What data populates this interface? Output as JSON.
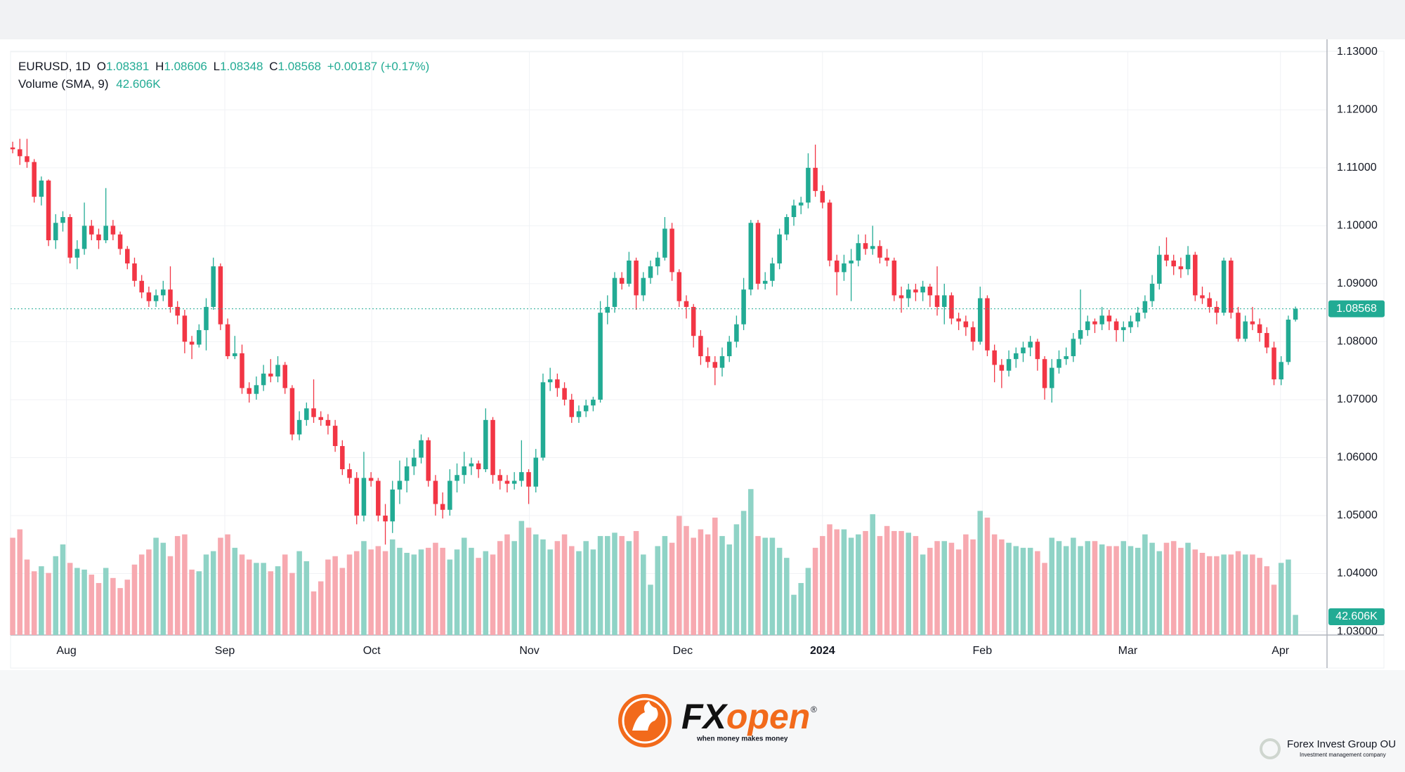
{
  "chart_data": {
    "type": "candlestick",
    "header": {
      "symbol": "EURUSD, 1D",
      "ohlc_letters": [
        "O",
        "H",
        "L",
        "C"
      ],
      "change": "+0.00187 (+0.17%)",
      "indicator": "Volume (SMA, 9)",
      "volume_sma": "42.606K"
    },
    "up_color": "#22ab94",
    "down_color": "#f23645",
    "up_volume_color": "#8fd3c6",
    "down_volume_color": "#f7a9b0",
    "ylim": [
      1.0294,
      1.1301
    ],
    "yticks": [
      {
        "value": 1.03,
        "label": "1.03000"
      },
      {
        "value": 1.04,
        "label": "1.04000"
      },
      {
        "value": 1.05,
        "label": "1.05000"
      },
      {
        "value": 1.06,
        "label": "1.06000"
      },
      {
        "value": 1.07,
        "label": "1.07000"
      },
      {
        "value": 1.08,
        "label": "1.08000"
      },
      {
        "value": 1.09,
        "label": "1.09000"
      },
      {
        "value": 1.1,
        "label": "1.10000"
      },
      {
        "value": 1.11,
        "label": "1.11000"
      },
      {
        "value": 1.12,
        "label": "1.12000"
      },
      {
        "value": 1.13,
        "label": "1.13000"
      }
    ],
    "xlim": [
      -0.3,
      183.4
    ],
    "xticks": [
      {
        "value": 7.5,
        "label": "Aug"
      },
      {
        "value": 29.6,
        "label": "Sep"
      },
      {
        "value": 50.1,
        "label": "Oct"
      },
      {
        "value": 72.1,
        "label": "Nov"
      },
      {
        "value": 93.5,
        "label": "Dec"
      },
      {
        "value": 113,
        "label": "2024"
      },
      {
        "value": 135.3,
        "label": "Feb"
      },
      {
        "value": 155.6,
        "label": "Mar"
      },
      {
        "value": 176.9,
        "label": "Apr"
      }
    ],
    "grid": true,
    "ohlc": [
      [
        1.1135,
        1.1145,
        1.1125,
        1.1132
      ],
      [
        1.1132,
        1.115,
        1.1105,
        1.112
      ],
      [
        1.112,
        1.115,
        1.11,
        1.111
      ],
      [
        1.111,
        1.1115,
        1.104,
        1.105
      ],
      [
        1.105,
        1.1085,
        1.1035,
        1.1078
      ],
      [
        1.1078,
        1.108,
        1.0965,
        1.0975
      ],
      [
        1.0975,
        1.102,
        1.096,
        1.1005
      ],
      [
        1.1005,
        1.1025,
        1.099,
        1.1015
      ],
      [
        1.1015,
        1.102,
        1.0935,
        1.0945
      ],
      [
        1.0945,
        1.0975,
        1.0925,
        1.096
      ],
      [
        1.096,
        1.104,
        1.095,
        1.1
      ],
      [
        1.1,
        1.101,
        1.0975,
        1.0985
      ],
      [
        1.0985,
        1.0995,
        1.096,
        1.0975
      ],
      [
        1.0975,
        1.1065,
        1.097,
        1.1
      ],
      [
        1.1,
        1.101,
        1.0975,
        1.0985
      ],
      [
        1.0985,
        1.099,
        1.095,
        1.096
      ],
      [
        1.096,
        1.0965,
        1.0925,
        1.0935
      ],
      [
        1.0935,
        1.0945,
        1.0895,
        1.0905
      ],
      [
        1.0905,
        1.0915,
        1.0875,
        1.0885
      ],
      [
        1.0885,
        1.0895,
        1.086,
        1.087
      ],
      [
        1.087,
        1.089,
        1.086,
        1.088
      ],
      [
        1.088,
        1.0905,
        1.087,
        1.089
      ],
      [
        1.089,
        1.093,
        1.085,
        1.086
      ],
      [
        1.086,
        1.087,
        1.083,
        1.0845
      ],
      [
        1.0845,
        1.0855,
        1.078,
        1.08
      ],
      [
        1.08,
        1.081,
        1.077,
        1.0795
      ],
      [
        1.0795,
        1.083,
        1.079,
        1.082
      ],
      [
        1.082,
        1.0875,
        1.0785,
        1.086
      ],
      [
        1.086,
        1.0945,
        1.0855,
        1.093
      ],
      [
        1.093,
        1.0935,
        1.082,
        1.083
      ],
      [
        1.083,
        1.084,
        1.077,
        1.0775
      ],
      [
        1.0775,
        1.081,
        1.077,
        1.078
      ],
      [
        1.078,
        1.0795,
        1.071,
        1.072
      ],
      [
        1.072,
        1.073,
        1.0695,
        1.071
      ],
      [
        1.071,
        1.074,
        1.07,
        1.0725
      ],
      [
        1.0725,
        1.076,
        1.0715,
        1.0745
      ],
      [
        1.0745,
        1.077,
        1.073,
        1.074
      ],
      [
        1.074,
        1.0775,
        1.073,
        1.076
      ],
      [
        1.076,
        1.0765,
        1.071,
        1.072
      ],
      [
        1.072,
        1.0725,
        1.063,
        1.064
      ],
      [
        1.064,
        1.068,
        1.063,
        1.0665
      ],
      [
        1.0665,
        1.0695,
        1.0655,
        1.0685
      ],
      [
        1.0685,
        1.0735,
        1.066,
        1.067
      ],
      [
        1.067,
        1.068,
        1.0655,
        1.0665
      ],
      [
        1.0665,
        1.0675,
        1.064,
        1.0655
      ],
      [
        1.0655,
        1.0665,
        1.061,
        1.062
      ],
      [
        1.062,
        1.063,
        1.057,
        1.058
      ],
      [
        1.058,
        1.059,
        1.0555,
        1.0565
      ],
      [
        1.0565,
        1.0575,
        1.0485,
        1.05
      ],
      [
        1.05,
        1.061,
        1.049,
        1.0565
      ],
      [
        1.0565,
        1.0575,
        1.055,
        1.056
      ],
      [
        1.056,
        1.0565,
        1.049,
        1.05
      ],
      [
        1.05,
        1.052,
        1.045,
        1.049
      ],
      [
        1.049,
        1.056,
        1.047,
        1.0545
      ],
      [
        1.0545,
        1.0595,
        1.052,
        1.056
      ],
      [
        1.056,
        1.06,
        1.054,
        1.0585
      ],
      [
        1.0585,
        1.0615,
        1.057,
        1.06
      ],
      [
        1.06,
        1.064,
        1.059,
        1.063
      ],
      [
        1.063,
        1.0635,
        1.055,
        1.056
      ],
      [
        1.056,
        1.057,
        1.05,
        1.052
      ],
      [
        1.052,
        1.054,
        1.0495,
        1.051
      ],
      [
        1.051,
        1.058,
        1.05,
        1.056
      ],
      [
        1.056,
        1.059,
        1.054,
        1.057
      ],
      [
        1.057,
        1.061,
        1.0555,
        1.0585
      ],
      [
        1.0585,
        1.06,
        1.057,
        1.059
      ],
      [
        1.059,
        1.0595,
        1.0565,
        1.058
      ],
      [
        1.058,
        1.0685,
        1.0575,
        1.0665
      ],
      [
        1.0665,
        1.067,
        1.0555,
        1.057
      ],
      [
        1.057,
        1.058,
        1.0545,
        1.056
      ],
      [
        1.056,
        1.057,
        1.054,
        1.0555
      ],
      [
        1.0555,
        1.0575,
        1.0545,
        1.056
      ],
      [
        1.056,
        1.063,
        1.055,
        1.0575
      ],
      [
        1.0575,
        1.058,
        1.052,
        1.055
      ],
      [
        1.055,
        1.0615,
        1.054,
        1.06
      ],
      [
        1.06,
        1.0745,
        1.0595,
        1.073
      ],
      [
        1.073,
        1.0755,
        1.0715,
        1.0735
      ],
      [
        1.0735,
        1.0745,
        1.0705,
        1.072
      ],
      [
        1.072,
        1.073,
        1.069,
        1.07
      ],
      [
        1.07,
        1.071,
        1.066,
        1.067
      ],
      [
        1.067,
        1.069,
        1.066,
        1.068
      ],
      [
        1.068,
        1.07,
        1.067,
        1.069
      ],
      [
        1.069,
        1.0705,
        1.068,
        1.07
      ],
      [
        1.07,
        1.087,
        1.0695,
        1.085
      ],
      [
        1.085,
        1.088,
        1.083,
        1.086
      ],
      [
        1.086,
        1.092,
        1.085,
        1.091
      ],
      [
        1.091,
        1.092,
        1.089,
        1.09
      ],
      [
        1.09,
        1.0955,
        1.0895,
        1.094
      ],
      [
        1.094,
        1.0945,
        1.0855,
        1.088
      ],
      [
        1.088,
        1.092,
        1.087,
        1.091
      ],
      [
        1.091,
        1.094,
        1.09,
        1.093
      ],
      [
        1.093,
        1.0955,
        1.0915,
        1.0945
      ],
      [
        1.0945,
        1.1015,
        1.094,
        1.0995
      ],
      [
        1.0995,
        1.1005,
        1.0905,
        1.092
      ],
      [
        1.092,
        1.0925,
        1.086,
        1.087
      ],
      [
        1.087,
        1.088,
        1.084,
        1.086
      ],
      [
        1.086,
        1.0865,
        1.079,
        1.081
      ],
      [
        1.081,
        1.082,
        1.076,
        1.0775
      ],
      [
        1.0775,
        1.079,
        1.0755,
        1.0765
      ],
      [
        1.0765,
        1.0775,
        1.0725,
        1.0755
      ],
      [
        1.0755,
        1.079,
        1.074,
        1.0775
      ],
      [
        1.0775,
        1.081,
        1.0765,
        1.08
      ],
      [
        1.08,
        1.0845,
        1.079,
        1.083
      ],
      [
        1.083,
        1.091,
        1.082,
        1.089
      ],
      [
        1.089,
        1.101,
        1.088,
        1.1005
      ],
      [
        1.1005,
        1.101,
        1.089,
        1.09
      ],
      [
        1.09,
        1.092,
        1.089,
        1.0905
      ],
      [
        1.0905,
        1.0945,
        1.0895,
        1.0935
      ],
      [
        1.0935,
        1.0995,
        1.0925,
        1.0985
      ],
      [
        1.0985,
        1.102,
        1.0975,
        1.1015
      ],
      [
        1.1015,
        1.1045,
        1.1,
        1.1035
      ],
      [
        1.1035,
        1.105,
        1.102,
        1.104
      ],
      [
        1.104,
        1.1125,
        1.103,
        1.11
      ],
      [
        1.11,
        1.114,
        1.105,
        1.106
      ],
      [
        1.106,
        1.107,
        1.103,
        1.104
      ],
      [
        1.104,
        1.1045,
        1.093,
        1.094
      ],
      [
        1.094,
        1.095,
        1.088,
        1.092
      ],
      [
        1.092,
        1.095,
        1.0905,
        1.0935
      ],
      [
        1.0935,
        1.096,
        1.087,
        1.094
      ],
      [
        1.094,
        1.0985,
        1.093,
        1.097
      ],
      [
        1.097,
        1.0985,
        1.095,
        1.096
      ],
      [
        1.096,
        1.1,
        1.095,
        1.0965
      ],
      [
        1.0965,
        1.0975,
        1.0935,
        1.0945
      ],
      [
        1.0945,
        1.096,
        1.093,
        1.094
      ],
      [
        1.094,
        1.0945,
        1.087,
        1.088
      ],
      [
        1.088,
        1.0895,
        1.085,
        1.0875
      ],
      [
        1.0875,
        1.09,
        1.086,
        1.089
      ],
      [
        1.089,
        1.09,
        1.087,
        1.0885
      ],
      [
        1.0885,
        1.0905,
        1.087,
        1.0895
      ],
      [
        1.0895,
        1.09,
        1.086,
        1.088
      ],
      [
        1.088,
        1.093,
        1.0845,
        1.086
      ],
      [
        1.086,
        1.09,
        1.083,
        1.088
      ],
      [
        1.088,
        1.0885,
        1.083,
        1.084
      ],
      [
        1.084,
        1.085,
        1.082,
        1.0835
      ],
      [
        1.0835,
        1.0845,
        1.081,
        1.0825
      ],
      [
        1.0825,
        1.0835,
        1.0785,
        1.08
      ],
      [
        1.08,
        1.0895,
        1.0795,
        1.0875
      ],
      [
        1.0875,
        1.088,
        1.0775,
        1.0785
      ],
      [
        1.0785,
        1.0795,
        1.073,
        1.076
      ],
      [
        1.076,
        1.077,
        1.072,
        1.075
      ],
      [
        1.075,
        1.0785,
        1.074,
        1.077
      ],
      [
        1.077,
        1.079,
        1.0755,
        1.078
      ],
      [
        1.078,
        1.08,
        1.0765,
        1.079
      ],
      [
        1.079,
        1.081,
        1.0775,
        1.08
      ],
      [
        1.08,
        1.0805,
        1.075,
        1.077
      ],
      [
        1.077,
        1.0775,
        1.07,
        1.072
      ],
      [
        1.072,
        1.077,
        1.0695,
        1.0755
      ],
      [
        1.0755,
        1.0785,
        1.0745,
        1.077
      ],
      [
        1.077,
        1.079,
        1.076,
        1.0775
      ],
      [
        1.0775,
        1.0815,
        1.0765,
        1.0805
      ],
      [
        1.0805,
        1.089,
        1.0795,
        1.082
      ],
      [
        1.082,
        1.0845,
        1.081,
        1.0835
      ],
      [
        1.0835,
        1.084,
        1.0815,
        1.083
      ],
      [
        1.083,
        1.086,
        1.082,
        1.0845
      ],
      [
        1.0845,
        1.0855,
        1.082,
        1.0835
      ],
      [
        1.0835,
        1.084,
        1.08,
        1.082
      ],
      [
        1.082,
        1.0835,
        1.08,
        1.0825
      ],
      [
        1.0825,
        1.0845,
        1.0815,
        1.0835
      ],
      [
        1.0835,
        1.086,
        1.0825,
        1.085
      ],
      [
        1.085,
        1.088,
        1.084,
        1.087
      ],
      [
        1.087,
        1.0915,
        1.086,
        1.09
      ],
      [
        1.09,
        1.0965,
        1.089,
        1.095
      ],
      [
        1.095,
        1.098,
        1.093,
        1.094
      ],
      [
        1.094,
        1.095,
        1.0915,
        1.093
      ],
      [
        1.093,
        1.0945,
        1.091,
        1.0925
      ],
      [
        1.0925,
        1.0965,
        1.0915,
        1.095
      ],
      [
        1.095,
        1.0955,
        1.087,
        1.088
      ],
      [
        1.088,
        1.0895,
        1.0865,
        1.0875
      ],
      [
        1.0875,
        1.0885,
        1.085,
        1.086
      ],
      [
        1.086,
        1.087,
        1.083,
        1.085
      ],
      [
        1.085,
        1.0945,
        1.0845,
        1.094
      ],
      [
        1.094,
        1.0945,
        1.084,
        1.085
      ],
      [
        1.085,
        1.086,
        1.08,
        1.0805
      ],
      [
        1.0805,
        1.0845,
        1.08,
        1.0835
      ],
      [
        1.0835,
        1.086,
        1.082,
        1.083
      ],
      [
        1.083,
        1.084,
        1.08,
        1.0815
      ],
      [
        1.0815,
        1.0825,
        1.078,
        1.079
      ],
      [
        1.079,
        1.08,
        1.0725,
        1.0735
      ],
      [
        1.0735,
        1.0775,
        1.0725,
        1.0765
      ],
      [
        1.0765,
        1.0845,
        1.076,
        1.08381
      ],
      [
        1.08381,
        1.08606,
        1.08348,
        1.08568
      ]
    ],
    "volume": [
      58,
      63,
      45,
      38,
      41,
      37,
      47,
      54,
      43,
      40,
      39,
      36,
      31,
      40,
      34,
      28,
      33,
      42,
      48,
      51,
      58,
      55,
      47,
      59,
      60,
      39,
      38,
      48,
      50,
      58,
      60,
      52,
      48,
      45,
      43,
      43,
      38,
      41,
      48,
      37,
      50,
      44,
      26,
      32,
      45,
      47,
      40,
      48,
      50,
      56,
      51,
      53,
      50,
      57,
      52,
      49,
      48,
      51,
      52,
      55,
      52,
      45,
      51,
      58,
      52,
      46,
      50,
      48,
      56,
      60,
      56,
      68,
      64,
      60,
      57,
      51,
      56,
      60,
      53,
      50,
      56,
      51,
      59,
      59,
      61,
      59,
      56,
      62,
      48,
      30,
      53,
      59,
      55,
      71,
      65,
      58,
      63,
      60,
      70,
      59,
      54,
      66,
      74,
      87,
      59,
      58,
      58,
      52,
      46,
      24,
      31,
      40,
      52,
      59,
      66,
      63,
      63,
      58,
      60,
      62,
      72,
      59,
      65,
      62,
      62,
      61,
      59,
      48,
      52,
      56,
      56,
      55,
      51,
      60,
      57,
      74,
      70,
      60,
      57,
      55,
      53,
      52,
      52,
      50,
      43,
      58,
      56,
      53,
      58,
      53,
      56,
      56,
      54,
      53,
      53,
      56,
      53,
      52,
      60,
      55,
      50,
      55,
      56,
      52,
      55,
      51,
      49,
      47,
      47,
      48,
      48,
      50,
      48,
      48,
      46,
      41,
      30,
      43,
      45,
      12
    ],
    "branding": {
      "fx": "FX",
      "open": "open",
      "registered": "®",
      "tagline": "when money makes money",
      "company": "Forex Invest Group OU",
      "company_note": "Investment management company"
    }
  }
}
